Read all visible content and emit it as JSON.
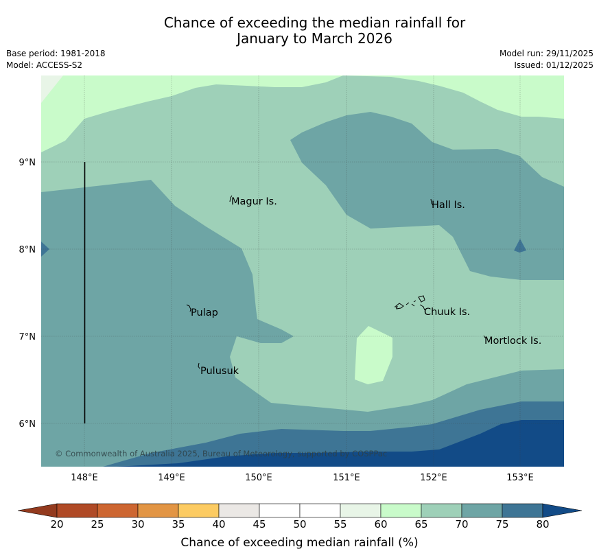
{
  "title": {
    "line1": "Chance of exceeding the median rainfall for",
    "line2": "January to March 2026"
  },
  "meta": {
    "base_period": "Base period: 1981-2018",
    "model": "Model: ACCESS-S2",
    "model_run": "Model run: 29/11/2025",
    "issued": "Issued: 01/12/2025"
  },
  "map": {
    "lat_labels": [
      "9°N",
      "8°N",
      "7°N",
      "6°N"
    ],
    "lon_labels": [
      "148°E",
      "149°E",
      "150°E",
      "151°E",
      "152°E",
      "153°E"
    ],
    "places": {
      "magur": "Magur Is.",
      "hall": "Hall Is.",
      "pulap": "Pulap",
      "chuuk": "Chuuk Is.",
      "mortlock": "Mortlock Is.",
      "pulusuk": "Pulusuk"
    },
    "copyright": "© Commonwealth of Australia 2025, Bureau of Meteorology, supported by COSPPac"
  },
  "colorbar": {
    "title": "Chance of exceeding median rainfall (%)",
    "ticks": [
      "20",
      "25",
      "30",
      "35",
      "40",
      "45",
      "50",
      "55",
      "60",
      "65",
      "70",
      "75",
      "80"
    ],
    "colors": {
      "below_20": "#933a1e",
      "c20_25": "#b04a26",
      "c25_30": "#cd6631",
      "c30_35": "#e29544",
      "c35_40": "#fccb62",
      "c40_45": "#ebe8e5",
      "c45_50": "#ffffff",
      "c50_55": "#ffffff",
      "c55_60": "#e8f5e7",
      "c60_65": "#c9fbca",
      "c65_70": "#9ed0b8",
      "c70_75": "#6ea5a5",
      "c75_80": "#3e7595",
      "above_80": "#124b87"
    }
  }
}
